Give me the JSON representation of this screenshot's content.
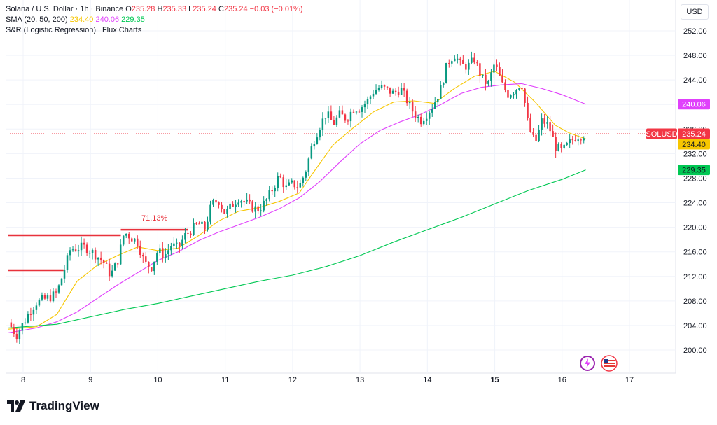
{
  "legend": {
    "symbol": "Solana / U.S. Dollar · 1h · Binance",
    "o_label": "O",
    "o_value": "235.28",
    "h_label": "H",
    "h_value": "235.33",
    "l_label": "L",
    "l_value": "235.24",
    "c_label": "C",
    "c_value": "235.24",
    "change": "−0.03 (−0.01%)",
    "sma_label": "SMA (20, 50, 200)",
    "sma20": "234.40",
    "sma50": "240.06",
    "sma200": "229.35",
    "indicator": "S&R (Logistic Regression) | Flux Charts"
  },
  "currency": "USD",
  "brand": "TradingView",
  "chart_data": {
    "type": "candlestick",
    "symbol": "SOLUSD",
    "interval": "1h",
    "ylim": [
      197,
      254
    ],
    "y_ticks": [
      "252.00",
      "248.00",
      "244.00",
      "240.00",
      "236.00",
      "232.00",
      "228.00",
      "224.00",
      "220.00",
      "216.00",
      "212.00",
      "208.00",
      "204.00",
      "200.00"
    ],
    "x_ticks": [
      {
        "label": "8",
        "x": 8
      },
      {
        "label": "9",
        "x": 9
      },
      {
        "label": "10",
        "x": 10
      },
      {
        "label": "11",
        "x": 11
      },
      {
        "label": "12",
        "x": 12
      },
      {
        "label": "13",
        "x": 13
      },
      {
        "label": "14",
        "x": 14
      },
      {
        "label": "15",
        "x": 15,
        "bold": true
      },
      {
        "label": "16",
        "x": 16
      },
      {
        "label": "17",
        "x": 17
      }
    ],
    "x_range": [
      7.75,
      17.6
    ],
    "close_path": [
      [
        7.78,
        204.5
      ],
      [
        7.9,
        202.4
      ],
      [
        8.0,
        204.3
      ],
      [
        8.1,
        206.3
      ],
      [
        8.2,
        207.8
      ],
      [
        8.3,
        208.2
      ],
      [
        8.4,
        208.6
      ],
      [
        8.5,
        209.3
      ],
      [
        8.6,
        212.7
      ],
      [
        8.7,
        216.4
      ],
      [
        8.8,
        216.6
      ],
      [
        8.9,
        216.8
      ],
      [
        9.0,
        216.2
      ],
      [
        9.1,
        215.3
      ],
      [
        9.2,
        214.2
      ],
      [
        9.3,
        212.2
      ],
      [
        9.4,
        214.4
      ],
      [
        9.5,
        219.2
      ],
      [
        9.6,
        218.4
      ],
      [
        9.7,
        217.6
      ],
      [
        9.8,
        214.2
      ],
      [
        9.9,
        213.4
      ],
      [
        10.0,
        216.2
      ],
      [
        10.1,
        215.4
      ],
      [
        10.2,
        217.1
      ],
      [
        10.3,
        216.6
      ],
      [
        10.4,
        218.6
      ],
      [
        10.5,
        219.6
      ],
      [
        10.6,
        220.6
      ],
      [
        10.7,
        219.8
      ],
      [
        10.8,
        223.8
      ],
      [
        10.9,
        224.4
      ],
      [
        11.0,
        222.2
      ],
      [
        11.1,
        223.6
      ],
      [
        11.2,
        224.8
      ],
      [
        11.3,
        224.1
      ],
      [
        11.4,
        223.2
      ],
      [
        11.5,
        222.9
      ],
      [
        11.6,
        224.2
      ],
      [
        11.7,
        226.2
      ],
      [
        11.8,
        228.4
      ],
      [
        11.9,
        226.4
      ],
      [
        12.0,
        227.1
      ],
      [
        12.1,
        226.6
      ],
      [
        12.2,
        229.4
      ],
      [
        12.3,
        233.8
      ],
      [
        12.4,
        236.4
      ],
      [
        12.5,
        238.6
      ],
      [
        12.6,
        236.8
      ],
      [
        12.7,
        238.4
      ],
      [
        12.8,
        237.6
      ],
      [
        12.9,
        239.4
      ],
      [
        13.0,
        239.4
      ],
      [
        13.1,
        240.4
      ],
      [
        13.2,
        242.2
      ],
      [
        13.3,
        242.8
      ],
      [
        13.4,
        242.4
      ],
      [
        13.5,
        241.8
      ],
      [
        13.6,
        242.6
      ],
      [
        13.7,
        240.6
      ],
      [
        13.8,
        238.6
      ],
      [
        13.9,
        237.4
      ],
      [
        14.0,
        238.6
      ],
      [
        14.1,
        240.2
      ],
      [
        14.2,
        242.6
      ],
      [
        14.3,
        246.8
      ],
      [
        14.4,
        248.2
      ],
      [
        14.5,
        246.4
      ],
      [
        14.6,
        246.2
      ],
      [
        14.7,
        247.4
      ],
      [
        14.8,
        244.4
      ],
      [
        14.9,
        243.2
      ],
      [
        15.0,
        246.8
      ],
      [
        15.1,
        243.4
      ],
      [
        15.2,
        241.6
      ],
      [
        15.3,
        242.4
      ],
      [
        15.4,
        243.6
      ],
      [
        15.5,
        236.4
      ],
      [
        15.6,
        233.6
      ],
      [
        15.7,
        237.4
      ],
      [
        15.8,
        236.6
      ],
      [
        15.9,
        233.1
      ],
      [
        16.0,
        232.4
      ],
      [
        16.1,
        233.6
      ],
      [
        16.2,
        234.8
      ],
      [
        16.3,
        235.0
      ],
      [
        16.35,
        235.24
      ]
    ],
    "series": [
      {
        "name": "SMA 20",
        "color": "#f7c600",
        "values": [
          [
            7.78,
            203.4
          ],
          [
            8.2,
            203.8
          ],
          [
            8.5,
            205.8
          ],
          [
            8.8,
            211.2
          ],
          [
            9.1,
            213.8
          ],
          [
            9.4,
            215.4
          ],
          [
            9.7,
            216.8
          ],
          [
            10.0,
            216.2
          ],
          [
            10.3,
            216.6
          ],
          [
            10.6,
            218.6
          ],
          [
            10.9,
            221.0
          ],
          [
            11.2,
            222.6
          ],
          [
            11.5,
            223.2
          ],
          [
            11.8,
            224.2
          ],
          [
            12.1,
            225.6
          ],
          [
            12.3,
            228.8
          ],
          [
            12.6,
            233.4
          ],
          [
            12.9,
            236.2
          ],
          [
            13.2,
            238.8
          ],
          [
            13.5,
            240.4
          ],
          [
            13.8,
            240.6
          ],
          [
            14.1,
            240.2
          ],
          [
            14.4,
            242.6
          ],
          [
            14.7,
            244.6
          ],
          [
            15.0,
            245.4
          ],
          [
            15.3,
            243.6
          ],
          [
            15.6,
            240.4
          ],
          [
            15.9,
            236.6
          ],
          [
            16.1,
            235.4
          ],
          [
            16.35,
            234.4
          ]
        ]
      },
      {
        "name": "SMA 50",
        "color": "#e040fb",
        "values": [
          [
            7.78,
            202.8
          ],
          [
            8.2,
            203.6
          ],
          [
            8.5,
            204.6
          ],
          [
            8.8,
            206.2
          ],
          [
            9.1,
            208.4
          ],
          [
            9.4,
            210.6
          ],
          [
            9.7,
            212.6
          ],
          [
            10.0,
            214.6
          ],
          [
            10.3,
            216.0
          ],
          [
            10.6,
            217.8
          ],
          [
            10.9,
            219.2
          ],
          [
            11.2,
            220.4
          ],
          [
            11.5,
            221.6
          ],
          [
            11.8,
            223.0
          ],
          [
            12.1,
            224.8
          ],
          [
            12.4,
            227.4
          ],
          [
            12.7,
            230.6
          ],
          [
            13.0,
            233.6
          ],
          [
            13.3,
            235.8
          ],
          [
            13.6,
            237.2
          ],
          [
            13.9,
            238.4
          ],
          [
            14.2,
            240.0
          ],
          [
            14.5,
            241.8
          ],
          [
            14.8,
            242.8
          ],
          [
            15.1,
            243.2
          ],
          [
            15.4,
            243.4
          ],
          [
            15.7,
            242.6
          ],
          [
            16.0,
            241.6
          ],
          [
            16.35,
            240.06
          ]
        ]
      },
      {
        "name": "SMA 200",
        "color": "#00c853",
        "values": [
          [
            7.78,
            203.6
          ],
          [
            8.5,
            204.2
          ],
          [
            9.0,
            205.4
          ],
          [
            9.5,
            206.6
          ],
          [
            10.0,
            207.6
          ],
          [
            10.5,
            208.8
          ],
          [
            11.0,
            210.0
          ],
          [
            11.5,
            211.2
          ],
          [
            12.0,
            212.2
          ],
          [
            12.5,
            213.6
          ],
          [
            13.0,
            215.4
          ],
          [
            13.5,
            217.6
          ],
          [
            14.0,
            219.6
          ],
          [
            14.5,
            221.6
          ],
          [
            15.0,
            223.8
          ],
          [
            15.5,
            226.0
          ],
          [
            16.0,
            227.8
          ],
          [
            16.35,
            229.35
          ]
        ]
      }
    ],
    "sr_levels": [
      {
        "y": 213.0,
        "x_start": 7.78,
        "x_end": 8.6,
        "color": "#e8323c"
      },
      {
        "y": 218.7,
        "x_start": 7.78,
        "x_end": 9.45,
        "color": "#e8323c"
      },
      {
        "y": 219.6,
        "x_start": 9.45,
        "x_end": 10.45,
        "color": "#e8323c",
        "label": "71.13%"
      }
    ],
    "current_price": 235.24,
    "price_labels": [
      {
        "text": "240.06",
        "y": 240.06,
        "color": "#e040fb",
        "text_color": "#ffffff"
      },
      {
        "text": "SOLUSD",
        "y": 235.24,
        "color": "#f23645",
        "text_color": "#ffffff",
        "side": "left"
      },
      {
        "text": "235.24",
        "y": 235.24,
        "color": "#f23645",
        "text_color": "#ffffff"
      },
      {
        "text": "234.40",
        "y": 234.4,
        "color": "#f7c600",
        "text_color": "#131722"
      },
      {
        "text": "229.35",
        "y": 229.35,
        "color": "#00c853",
        "text_color": "#131722"
      }
    ]
  }
}
